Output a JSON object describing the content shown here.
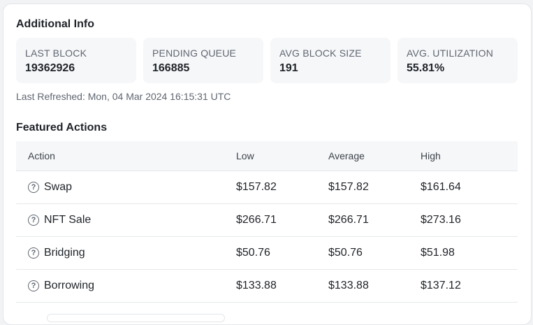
{
  "additional_info": {
    "title": "Additional Info",
    "stats": [
      {
        "label": "LAST BLOCK",
        "value": "19362926"
      },
      {
        "label": "PENDING QUEUE",
        "value": "166885"
      },
      {
        "label": "AVG BLOCK SIZE",
        "value": "191"
      },
      {
        "label": "AVG. UTILIZATION",
        "value": "55.81%"
      }
    ],
    "last_refreshed": "Last Refreshed: Mon, 04 Mar 2024 16:15:31 UTC"
  },
  "featured_actions": {
    "title": "Featured Actions",
    "columns": [
      "Action",
      "Low",
      "Average",
      "High"
    ],
    "rows": [
      {
        "icon": "question-circle-icon",
        "action": "Swap",
        "low": "$157.82",
        "average": "$157.82",
        "high": "$161.64"
      },
      {
        "icon": "question-circle-icon",
        "action": "NFT Sale",
        "low": "$266.71",
        "average": "$266.71",
        "high": "$273.16"
      },
      {
        "icon": "question-circle-icon",
        "action": "Bridging",
        "low": "$50.76",
        "average": "$50.76",
        "high": "$51.98"
      },
      {
        "icon": "question-circle-icon",
        "action": "Borrowing",
        "low": "$133.88",
        "average": "$133.88",
        "high": "$137.12"
      }
    ]
  }
}
